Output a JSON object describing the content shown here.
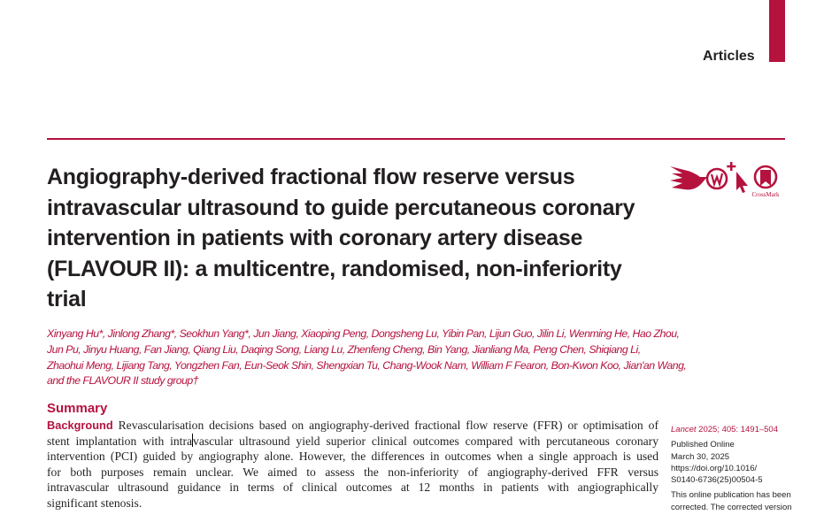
{
  "header": {
    "section": "Articles"
  },
  "article": {
    "title_lines": [
      "Angiography-derived fractional flow reserve versus",
      "intravascular ultrasound to guide percutaneous coronary",
      "intervention in patients with coronary artery disease",
      "(FLAVOUR II): a multicentre, randomised, non-inferiority",
      "trial"
    ],
    "author_lines": [
      "Xinyang Hu*, Jinlong Zhang*, Seokhun Yang*, Jun Jiang, Xiaoping Peng, Dongsheng Lu, Yibin Pan, Lijun Guo, Jilin Li, Wenming He, Hao Zhou,",
      "Jun Pu, Jinyu Huang, Fan Jiang, Qiang Liu, Daqing Song, Liang Lu, Zhenfeng Cheng, Bin Yang, Jianliang Ma, Peng Chen, Shiqiang Li,",
      "Zhaohui Meng, Lijiang Tang, Yongzhen Fan, Eun-Seok Shin, Shengxian Tu, Chang-Wook Nam, William F Fearon, Bon-Kwon Koo, Jian'an Wang,",
      "and the FLAVOUR II study group†"
    ],
    "icons": [
      "open-access-swift-icon",
      "web-extra-icon",
      "click-cursor-icon",
      "crossmark-icon"
    ],
    "crossmark_label": "CrossMark",
    "summary_heading": "Summary",
    "background_heading": "Background",
    "body_lines": [
      "Revascularisation decisions based on angiography-derived fractional flow reserve (FFR) or optimisation of",
      "stent implantation with intra",
      "vascular ultrasound yield superior clinical outcomes compared with percutaneous coronary",
      "intervention (PCI) guided by angiography alone. However, the differences in outcomes when a single approach is used",
      "for both purposes remain unclear. We aimed to assess the non-inferiority of angiography-derived FFR versus",
      "intravascular ultrasound guidance in terms of clinical outcomes at 12 months in patients with angiographically",
      "significant stenosis."
    ],
    "sidebar": {
      "journal": "Lancet",
      "citation": "2025; 405: 1491–504",
      "published_label": "Published Online",
      "date": "March 30, 2025",
      "doi_line1": "https://doi.org/10.1016/",
      "doi_line2": "S0140-6736(25)00504-5",
      "note_line1": "This online publication has been",
      "note_line2": "corrected. The corrected version"
    }
  },
  "colors": {
    "accent": "#b5123e",
    "text": "#231f20"
  }
}
